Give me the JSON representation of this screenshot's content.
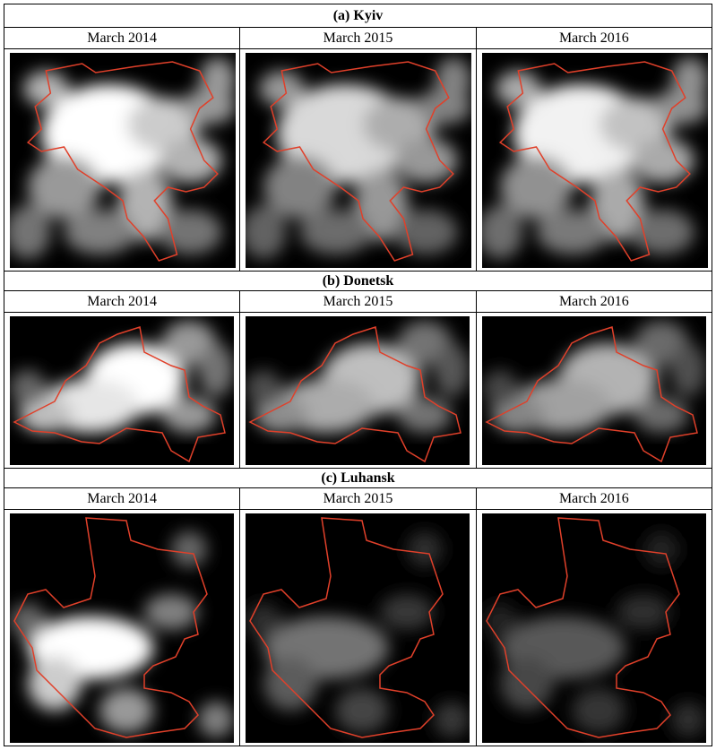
{
  "columns": [
    "March 2014",
    "March 2015",
    "March 2016"
  ],
  "sections": [
    {
      "title": "(a) Kyiv",
      "brightness": [
        1.0,
        0.85,
        0.95
      ]
    },
    {
      "title": "(b) Donetsk",
      "brightness": [
        1.0,
        0.75,
        0.7
      ]
    },
    {
      "title": "(c) Luhansk",
      "brightness": [
        1.0,
        0.45,
        0.35
      ]
    }
  ],
  "colors": {
    "boundary": "#e0402a",
    "background": "#000000"
  }
}
